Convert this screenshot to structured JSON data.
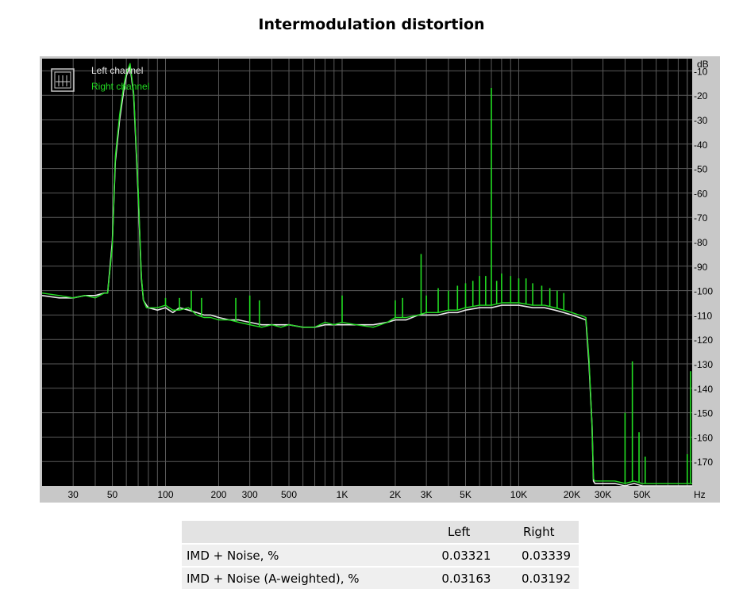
{
  "title": "Intermodulation distortion",
  "chart_data": {
    "type": "line",
    "title": "Intermodulation distortion",
    "x_unit": "Hz",
    "y_unit": "dB",
    "x_scale": "log",
    "xlim": [
      20,
      96000
    ],
    "ylim": [
      -180,
      -5
    ],
    "grid": true,
    "legend_position": "top-left",
    "x_ticks": [
      {
        "value": 30,
        "label": "30"
      },
      {
        "value": 50,
        "label": "50"
      },
      {
        "value": 100,
        "label": "100"
      },
      {
        "value": 200,
        "label": "200"
      },
      {
        "value": 300,
        "label": "300"
      },
      {
        "value": 500,
        "label": "500"
      },
      {
        "value": 1000,
        "label": "1K"
      },
      {
        "value": 2000,
        "label": "2K"
      },
      {
        "value": 3000,
        "label": "3K"
      },
      {
        "value": 5000,
        "label": "5K"
      },
      {
        "value": 10000,
        "label": "10K"
      },
      {
        "value": 20000,
        "label": "20K"
      },
      {
        "value": 30000,
        "label": "30K"
      },
      {
        "value": 50000,
        "label": "50K"
      }
    ],
    "y_ticks": [
      {
        "value": -10,
        "label": "-10"
      },
      {
        "value": -20,
        "label": "-20"
      },
      {
        "value": -30,
        "label": "-30"
      },
      {
        "value": -40,
        "label": "-40"
      },
      {
        "value": -50,
        "label": "-50"
      },
      {
        "value": -60,
        "label": "-60"
      },
      {
        "value": -70,
        "label": "-70"
      },
      {
        "value": -80,
        "label": "-80"
      },
      {
        "value": -90,
        "label": "-90"
      },
      {
        "value": -100,
        "label": "-100"
      },
      {
        "value": -110,
        "label": "-110"
      },
      {
        "value": -120,
        "label": "-120"
      },
      {
        "value": -130,
        "label": "-130"
      },
      {
        "value": -140,
        "label": "-140"
      },
      {
        "value": -150,
        "label": "-150"
      },
      {
        "value": -160,
        "label": "-160"
      },
      {
        "value": -170,
        "label": "-170"
      }
    ],
    "series": [
      {
        "name": "Left channel",
        "color": "#e8e8e8",
        "x": [
          20,
          25,
          30,
          35,
          40,
          45,
          47,
          50,
          52,
          55,
          58,
          60,
          63,
          66,
          70,
          73,
          75,
          78,
          80,
          90,
          100,
          110,
          120,
          135,
          150,
          165,
          180,
          200,
          230,
          260,
          300,
          350,
          400,
          450,
          500,
          600,
          700,
          800,
          900,
          1000,
          1200,
          1500,
          1800,
          2000,
          2300,
          2700,
          3000,
          3500,
          4000,
          4500,
          5000,
          6000,
          7000,
          8000,
          9000,
          10000,
          12000,
          14000,
          16000,
          18000,
          20000,
          22000,
          24000,
          25000,
          26000,
          26500,
          27000,
          30000,
          35000,
          40000,
          45000,
          50000,
          60000,
          70000,
          80000,
          90000,
          96000
        ],
        "y": [
          -102,
          -103,
          -103,
          -102,
          -102,
          -101,
          -101,
          -80,
          -47,
          -30,
          -18,
          -12,
          -8,
          -20,
          -60,
          -95,
          -104,
          -106,
          -107,
          -108,
          -107,
          -109,
          -107,
          -108,
          -109,
          -110,
          -110,
          -111,
          -112,
          -112,
          -113,
          -114,
          -114,
          -114,
          -114,
          -115,
          -115,
          -114,
          -114,
          -114,
          -114,
          -114,
          -113,
          -112,
          -112,
          -110,
          -110,
          -110,
          -109,
          -109,
          -108,
          -107,
          -107,
          -106,
          -106,
          -106,
          -107,
          -107,
          -108,
          -109,
          -110,
          -111,
          -112,
          -130,
          -155,
          -178,
          -179,
          -179,
          -179,
          -180,
          -179,
          -180,
          -180,
          -180,
          -180,
          -180,
          -180
        ]
      },
      {
        "name": "Right channel",
        "color": "#22dd22",
        "x": [
          20,
          25,
          30,
          35,
          40,
          45,
          47,
          50,
          52,
          55,
          58,
          60,
          63,
          66,
          70,
          73,
          75,
          78,
          80,
          90,
          100,
          110,
          120,
          135,
          150,
          165,
          180,
          200,
          230,
          260,
          300,
          350,
          400,
          450,
          500,
          600,
          700,
          800,
          900,
          1000,
          1200,
          1500,
          1800,
          2000,
          2300,
          2700,
          3000,
          3500,
          4000,
          4500,
          5000,
          6000,
          7000,
          8000,
          9000,
          10000,
          12000,
          14000,
          16000,
          18000,
          20000,
          22000,
          24000,
          25000,
          26000,
          26500,
          27000,
          30000,
          35000,
          40000,
          45000,
          50000,
          60000,
          70000,
          80000,
          90000,
          96000
        ],
        "y": [
          -101,
          -102,
          -103,
          -102,
          -103,
          -101,
          -101,
          -82,
          -45,
          -28,
          -16,
          -11,
          -7,
          -19,
          -58,
          -94,
          -104,
          -107,
          -107,
          -107,
          -106,
          -108,
          -108,
          -107,
          -110,
          -111,
          -111,
          -112,
          -112,
          -113,
          -114,
          -115,
          -114,
          -115,
          -114,
          -115,
          -115,
          -113,
          -114,
          -113,
          -114,
          -115,
          -113,
          -111,
          -111,
          -110,
          -109,
          -109,
          -108,
          -108,
          -107,
          -106,
          -106,
          -105,
          -105,
          -105,
          -106,
          -106,
          -107,
          -108,
          -109,
          -110,
          -111,
          -128,
          -155,
          -177,
          -178,
          -178,
          -178,
          -179,
          -178,
          -179,
          -179,
          -179,
          -179,
          -179,
          -179
        ]
      }
    ],
    "spikes": [
      {
        "x": 80,
        "y": -107
      },
      {
        "x": 100,
        "y": -103
      },
      {
        "x": 120,
        "y": -103
      },
      {
        "x": 140,
        "y": -100
      },
      {
        "x": 160,
        "y": -103
      },
      {
        "x": 250,
        "y": -103
      },
      {
        "x": 300,
        "y": -102
      },
      {
        "x": 340,
        "y": -104
      },
      {
        "x": 1000,
        "y": -102
      },
      {
        "x": 2000,
        "y": -104
      },
      {
        "x": 2200,
        "y": -103
      },
      {
        "x": 2800,
        "y": -85
      },
      {
        "x": 3000,
        "y": -102
      },
      {
        "x": 3500,
        "y": -99
      },
      {
        "x": 4000,
        "y": -100
      },
      {
        "x": 4500,
        "y": -98
      },
      {
        "x": 5000,
        "y": -97
      },
      {
        "x": 5500,
        "y": -96
      },
      {
        "x": 6000,
        "y": -94
      },
      {
        "x": 6500,
        "y": -94
      },
      {
        "x": 7000,
        "y": -17
      },
      {
        "x": 7500,
        "y": -96
      },
      {
        "x": 8000,
        "y": -93
      },
      {
        "x": 9000,
        "y": -94
      },
      {
        "x": 10000,
        "y": -95
      },
      {
        "x": 11000,
        "y": -95
      },
      {
        "x": 12000,
        "y": -97
      },
      {
        "x": 13500,
        "y": -98
      },
      {
        "x": 15000,
        "y": -99
      },
      {
        "x": 16500,
        "y": -100
      },
      {
        "x": 18000,
        "y": -101
      },
      {
        "x": 40000,
        "y": -150
      },
      {
        "x": 44000,
        "y": -129
      },
      {
        "x": 48000,
        "y": -158
      },
      {
        "x": 52000,
        "y": -168
      },
      {
        "x": 90000,
        "y": -167
      },
      {
        "x": 94000,
        "y": -133
      }
    ]
  },
  "table": {
    "headers": [
      "",
      "Left",
      "Right"
    ],
    "rows": [
      {
        "label": "IMD + Noise, %",
        "left": "0.03321",
        "right": "0.03339"
      },
      {
        "label": "IMD + Noise (A-weighted), %",
        "left": "0.03163",
        "right": "0.03192"
      }
    ]
  }
}
